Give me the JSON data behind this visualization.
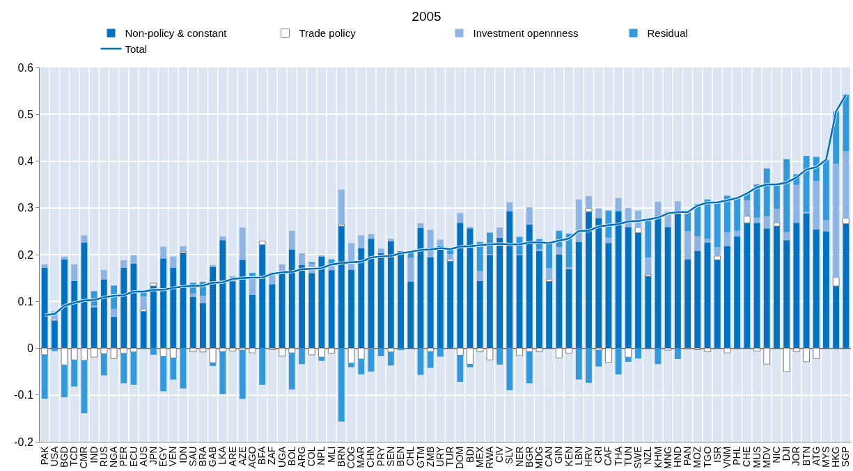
{
  "chart_data": {
    "type": "bar",
    "title": "2005",
    "stacked": true,
    "grid": true,
    "legend": "top",
    "marker": "none",
    "ylim": [
      -0.2,
      0.6
    ],
    "yticks": [
      -0.2,
      -0.1,
      0,
      0.1,
      0.2,
      0.3,
      0.4,
      0.5,
      0.6
    ],
    "categories": [
      "PAK",
      "USA",
      "BGD",
      "TCD",
      "CMR",
      "IND",
      "RUS",
      "NGA",
      "PER",
      "ECU",
      "AUS",
      "JPN",
      "EGY",
      "VEN",
      "IDN",
      "SAU",
      "BRA",
      "GAB",
      "LKA",
      "ARE",
      "AZE",
      "AGO",
      "BFA",
      "ZAF",
      "UGA",
      "BOL",
      "ARG",
      "COL",
      "NPL",
      "MLI",
      "BRN",
      "COG",
      "MAR",
      "CHN",
      "PRY",
      "SEN",
      "BEN",
      "CHL",
      "GTM",
      "ZMB",
      "URY",
      "TUR",
      "DOM",
      "BDI",
      "MEX",
      "RWA",
      "CIV",
      "SLV",
      "NER",
      "BGR",
      "MDG",
      "CAN",
      "GIN",
      "KEN",
      "LBN",
      "HRV",
      "CRI",
      "CAF",
      "THA",
      "TUN",
      "SWE",
      "NZL",
      "KHM",
      "MNG",
      "HND",
      "PAN",
      "MOZ",
      "TGO",
      "ISR",
      "VNM",
      "PHL",
      "CHE",
      "MUS",
      "MDV",
      "NIC",
      "DJI",
      "JOR",
      "BTN",
      "ATG",
      "MYS",
      "HKG",
      "SGP"
    ],
    "series": [
      {
        "name": "Non-policy & constant",
        "color": "#0070c0",
        "values": [
          0.172,
          0.059,
          0.19,
          0.144,
          0.226,
          0.087,
          0.147,
          0.067,
          0.172,
          0.181,
          0.079,
          0.133,
          0.192,
          0.172,
          0.204,
          0.11,
          0.096,
          0.174,
          0.231,
          0.143,
          0.189,
          0.114,
          0.221,
          0.136,
          0.164,
          0.211,
          0.178,
          0.16,
          0.196,
          0.167,
          0.261,
          0.168,
          0.214,
          0.234,
          0.203,
          0.229,
          0.207,
          0.142,
          0.257,
          0.194,
          0.218,
          0.186,
          0.268,
          0.256,
          0.144,
          0.199,
          0.236,
          0.293,
          0.199,
          0.264,
          0.208,
          0.143,
          0.2,
          0.169,
          0.227,
          0.292,
          0.278,
          0.225,
          0.293,
          0.259,
          0.247,
          0.154,
          0.283,
          0.259,
          0.289,
          0.19,
          0.208,
          0.226,
          0.189,
          0.218,
          0.239,
          0.268,
          0.268,
          0.256,
          0.261,
          0.231,
          0.268,
          0.289,
          0.254,
          0.25,
          0.133,
          0.266
        ]
      },
      {
        "name": "Trade policy",
        "color": "#ffffff",
        "values": [
          -0.014,
          0.003,
          -0.036,
          -0.025,
          -0.026,
          -0.019,
          -0.012,
          -0.022,
          -0.011,
          -0.008,
          0.004,
          0.006,
          -0.018,
          -0.021,
          0.003,
          -0.007,
          -0.008,
          -0.031,
          -0.007,
          -0.006,
          -0.004,
          -0.01,
          0.008,
          -0.003,
          -0.017,
          -0.01,
          null,
          -0.014,
          -0.019,
          -0.011,
          0.004,
          -0.032,
          -0.023,
          -0.002,
          null,
          -0.008,
          null,
          null,
          null,
          -0.007,
          null,
          0.004,
          -0.015,
          -0.034,
          -0.007,
          -0.025,
          null,
          null,
          -0.016,
          -0.007,
          -0.007,
          0.004,
          -0.021,
          -0.011,
          null,
          0.007,
          -0.004,
          -0.031,
          null,
          -0.019,
          0.011,
          0.004,
          null,
          -0.004,
          null,
          -0.002,
          -0.003,
          -0.007,
          0.008,
          -0.01,
          null,
          0.014,
          -0.006,
          -0.034,
          0.007,
          -0.05,
          -0.007,
          -0.029,
          -0.022,
          null,
          0.018,
          0.012
        ]
      },
      {
        "name": "Investment opennness",
        "color": "#8db4e2",
        "values": [
          0.007,
          0.017,
          0.006,
          0.035,
          0.015,
          0.004,
          0.02,
          0.017,
          0.016,
          0.018,
          0.028,
          0,
          0.025,
          0.024,
          0.011,
          0.007,
          0.016,
          0.004,
          0.008,
          0.011,
          0.069,
          0.034,
          0,
          0.026,
          0.015,
          0.04,
          0.025,
          0.021,
          0.002,
          0.014,
          0.074,
          0.057,
          0.027,
          0.01,
          0.01,
          0.005,
          0,
          0.051,
          0.01,
          0.059,
          0.014,
          0.011,
          0.021,
          0.003,
          0.021,
          0.002,
          0.022,
          0.019,
          0.002,
          0.037,
          0.004,
          0.024,
          0.016,
          0.004,
          0.091,
          0.026,
          0.021,
          0.011,
          0.028,
          0.041,
          0.036,
          0.036,
          0.03,
          0.033,
          0.025,
          0.06,
          0.031,
          0.008,
          0.019,
          0.03,
          0.012,
          0.034,
          0.011,
          0.026,
          0.03,
          0.017,
          0.081,
          0.002,
          0.103,
          0.024,
          0.243,
          0.143
        ]
      },
      {
        "name": "Residual",
        "color": "#3399dd",
        "values": [
          -0.094,
          -0.006,
          -0.069,
          -0.057,
          -0.113,
          0.031,
          -0.046,
          0.05,
          -0.064,
          -0.07,
          0.01,
          -0.014,
          -0.074,
          -0.046,
          -0.086,
          0.023,
          0.03,
          -0.007,
          -0.091,
          0,
          -0.104,
          0.013,
          -0.078,
          0,
          0,
          -0.078,
          -0.034,
          0.003,
          -0.008,
          0.009,
          -0.157,
          -0.009,
          -0.033,
          -0.048,
          -0.017,
          -0.029,
          -0.004,
          0.013,
          -0.057,
          -0.035,
          -0.018,
          0.011,
          -0.057,
          -0.007,
          0.062,
          0.046,
          -0.035,
          -0.09,
          0.037,
          -0.068,
          0.021,
          0.054,
          0.035,
          0.072,
          -0.067,
          -0.074,
          -0.035,
          0.058,
          -0.056,
          -0.01,
          -0.022,
          0.081,
          -0.034,
          0,
          -0.023,
          0.043,
          0.069,
          0.084,
          0.096,
          0.078,
          0.07,
          0.015,
          0.071,
          0.102,
          0.052,
          0.156,
          0.023,
          0.12,
          0.052,
          0.129,
          0.112,
          0.121
        ]
      },
      {
        "name": "Total",
        "type": "line",
        "color": "#0070c0",
        "values": [
          0.071,
          0.073,
          0.091,
          0.097,
          0.102,
          0.103,
          0.109,
          0.112,
          0.113,
          0.121,
          0.121,
          0.125,
          0.125,
          0.129,
          0.132,
          0.133,
          0.134,
          0.14,
          0.141,
          0.148,
          0.15,
          0.151,
          0.151,
          0.159,
          0.162,
          0.163,
          0.169,
          0.17,
          0.171,
          0.179,
          0.182,
          0.184,
          0.185,
          0.194,
          0.196,
          0.197,
          0.203,
          0.206,
          0.21,
          0.211,
          0.214,
          0.212,
          0.217,
          0.218,
          0.22,
          0.222,
          0.223,
          0.222,
          0.222,
          0.226,
          0.226,
          0.225,
          0.23,
          0.234,
          0.251,
          0.251,
          0.26,
          0.263,
          0.265,
          0.271,
          0.272,
          0.275,
          0.279,
          0.288,
          0.291,
          0.291,
          0.305,
          0.311,
          0.312,
          0.316,
          0.321,
          0.331,
          0.344,
          0.35,
          0.35,
          0.354,
          0.365,
          0.382,
          0.387,
          0.403,
          0.506,
          0.542
        ]
      }
    ]
  }
}
